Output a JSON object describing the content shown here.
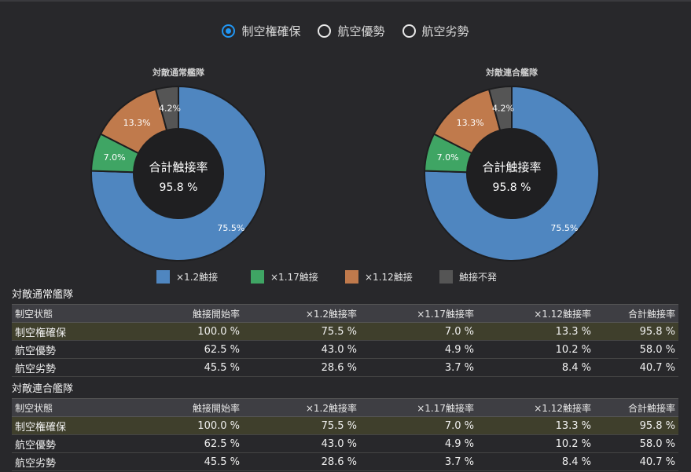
{
  "radio_options": [
    {
      "label": "制空権確保",
      "selected": true
    },
    {
      "label": "航空優勢",
      "selected": false
    },
    {
      "label": "航空劣勢",
      "selected": false
    }
  ],
  "colors": {
    "x12": "#4f86c0",
    "x117": "#3fa564",
    "x112": "#c07a4c",
    "none": "#555555"
  },
  "chart_data": [
    {
      "type": "pie",
      "title": "対敵通常艦隊",
      "center_label": "合計触接率",
      "center_value": "95.8 %",
      "labels": [
        "×1.2触接",
        "×1.17触接",
        "×1.12触接",
        "触接不発"
      ],
      "values": [
        75.5,
        7.0,
        13.3,
        4.2
      ],
      "value_labels": [
        "75.5%",
        "7.0%",
        "13.3%",
        "4.2%"
      ]
    },
    {
      "type": "pie",
      "title": "対敵連合艦隊",
      "center_label": "合計触接率",
      "center_value": "95.8 %",
      "labels": [
        "×1.2触接",
        "×1.17触接",
        "×1.12触接",
        "触接不発"
      ],
      "values": [
        75.5,
        7.0,
        13.3,
        4.2
      ],
      "value_labels": [
        "75.5%",
        "7.0%",
        "13.3%",
        "4.2%"
      ]
    }
  ],
  "legend": [
    {
      "label": "×1.2触接",
      "color": "#4f86c0"
    },
    {
      "label": "×1.17触接",
      "color": "#3fa564"
    },
    {
      "label": "×1.12触接",
      "color": "#c07a4c"
    },
    {
      "label": "触接不発",
      "color": "#555555"
    }
  ],
  "tables": [
    {
      "title": "対敵通常艦隊",
      "headers": [
        "制空状態",
        "触接開始率",
        "×1.2触接率",
        "×1.17触接率",
        "×1.12触接率",
        "合計触接率"
      ],
      "rows": [
        [
          "制空権確保",
          "100.0 %",
          "75.5 %",
          "7.0 %",
          "13.3 %",
          "95.8 %"
        ],
        [
          "航空優勢",
          "62.5 %",
          "43.0 %",
          "4.9 %",
          "10.2 %",
          "58.0 %"
        ],
        [
          "航空劣勢",
          "45.5 %",
          "28.6 %",
          "3.7 %",
          "8.4 %",
          "40.7 %"
        ]
      ]
    },
    {
      "title": "対敵連合艦隊",
      "headers": [
        "制空状態",
        "触接開始率",
        "×1.2触接率",
        "×1.17触接率",
        "×1.12触接率",
        "合計触接率"
      ],
      "rows": [
        [
          "制空権確保",
          "100.0 %",
          "75.5 %",
          "7.0 %",
          "13.3 %",
          "95.8 %"
        ],
        [
          "航空優勢",
          "62.5 %",
          "43.0 %",
          "4.9 %",
          "10.2 %",
          "58.0 %"
        ],
        [
          "航空劣勢",
          "45.5 %",
          "28.6 %",
          "3.7 %",
          "8.4 %",
          "40.7 %"
        ]
      ]
    }
  ]
}
